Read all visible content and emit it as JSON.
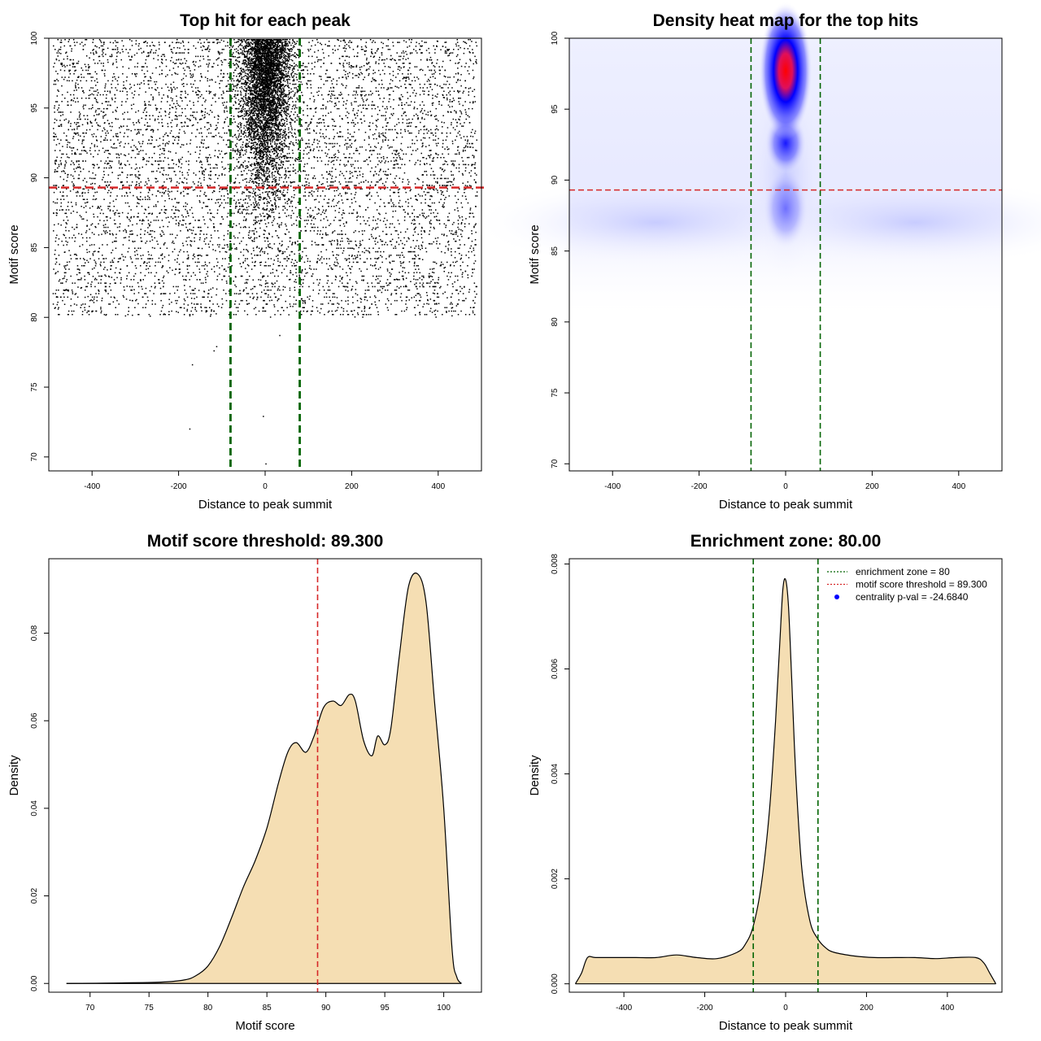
{
  "chart_data": [
    {
      "type": "scatter",
      "title": "Top hit for each peak",
      "xlabel": "Distance to peak summit",
      "ylabel": "Motif score",
      "xlim": [
        -500,
        500
      ],
      "ylim": [
        69,
        100
      ],
      "xticks": [
        -400,
        -200,
        0,
        200,
        400
      ],
      "yticks": [
        70,
        75,
        80,
        85,
        90,
        95,
        100
      ],
      "grid": false,
      "vlines": [
        -80,
        80
      ],
      "hline": 89.3,
      "points_summary": {
        "x_range": [
          -490,
          490
        ],
        "y_range": [
          69.5,
          99.9
        ],
        "concentration": "points densely clustered near x = 0 for scores 86–100; background uniformly spread for scores ~80–100 across the full x range",
        "outliers": [
          [
            -174,
            72
          ],
          [
            -168,
            76.6
          ],
          [
            -118,
            77.6
          ],
          [
            -112,
            77.9
          ],
          [
            -4,
            72.9
          ],
          [
            2,
            69.5
          ],
          [
            34,
            78.7
          ]
        ]
      },
      "colors": {
        "points": "#000000",
        "vlines": "#006400",
        "hline": "#d62728"
      }
    },
    {
      "type": "heatmap",
      "title": "Density heat map for the top hits",
      "xlabel": "Distance to peak summit",
      "ylabel": "Motif score",
      "xlim": [
        -500,
        500
      ],
      "ylim": [
        69.5,
        100
      ],
      "xticks": [
        -400,
        -200,
        0,
        200,
        400
      ],
      "yticks": [
        70,
        75,
        80,
        85,
        90,
        95,
        100
      ],
      "grid": false,
      "vlines": [
        -80,
        80
      ],
      "hline": 89.3,
      "hotspots": [
        {
          "x": 0,
          "y": 97.7,
          "intensity": 1.0
        },
        {
          "x": 0,
          "y": 92.6,
          "intensity": 0.65
        },
        {
          "x": 0,
          "y": 88,
          "intensity": 0.35
        }
      ],
      "colors": {
        "low": "#ffffff",
        "mid": "#0000ff",
        "high": "#ff0000",
        "vlines": "#006400",
        "hline": "#d62728"
      }
    },
    {
      "type": "area",
      "title": "Motif score threshold: 89.300",
      "xlabel": "Motif score",
      "ylabel": "Density",
      "xlim": [
        66.5,
        103.2
      ],
      "ylim": [
        -0.002,
        0.097
      ],
      "xticks": [
        70,
        75,
        80,
        85,
        90,
        95,
        100
      ],
      "yticks": [
        0.0,
        0.02,
        0.04,
        0.06,
        0.08
      ],
      "ytick_labels": [
        "0.00",
        "0.02",
        "0.04",
        "0.06",
        "0.08"
      ],
      "grid": false,
      "vline": 89.3,
      "x": [
        68,
        72,
        76,
        78,
        79,
        80,
        81,
        82,
        83,
        84,
        85,
        86,
        86.8,
        87.5,
        88.3,
        89,
        89.8,
        90.6,
        91.3,
        92,
        92.5,
        93.2,
        93.9,
        94.4,
        95,
        95.5,
        96.2,
        97,
        97.8,
        98.5,
        99.2,
        100,
        100.7,
        101.1,
        101.5
      ],
      "y": [
        0.0,
        0.0001,
        0.0003,
        0.0008,
        0.0018,
        0.004,
        0.0085,
        0.015,
        0.022,
        0.028,
        0.0355,
        0.046,
        0.053,
        0.055,
        0.0528,
        0.0565,
        0.063,
        0.0645,
        0.0635,
        0.066,
        0.0645,
        0.0555,
        0.052,
        0.0565,
        0.0545,
        0.058,
        0.074,
        0.0905,
        0.0935,
        0.087,
        0.065,
        0.04,
        0.008,
        0.0015,
        0.0
      ],
      "colors": {
        "fill": "#f5deb3",
        "line": "#000000",
        "vline": "#d62728"
      }
    },
    {
      "type": "area",
      "title": "Enrichment zone: 80.00",
      "xlabel": "Distance to peak summit",
      "ylabel": "Density",
      "xlim": [
        -535,
        535
      ],
      "ylim": [
        -0.00016,
        0.0081
      ],
      "xticks": [
        -400,
        -200,
        0,
        200,
        400
      ],
      "yticks": [
        0.0,
        0.002,
        0.004,
        0.006,
        0.008
      ],
      "ytick_labels": [
        "0.000",
        "0.002",
        "0.004",
        "0.006",
        "0.008"
      ],
      "grid": false,
      "vlines": [
        -80,
        80
      ],
      "x": [
        -520,
        -505,
        -490,
        -470,
        -420,
        -370,
        -320,
        -270,
        -220,
        -170,
        -120,
        -100,
        -80,
        -60,
        -40,
        -25,
        -15,
        -7,
        0,
        7,
        15,
        25,
        40,
        60,
        80,
        100,
        120,
        170,
        220,
        270,
        320,
        370,
        420,
        470,
        490,
        505,
        520
      ],
      "y": [
        0.0,
        0.0002,
        0.0005,
        0.0005,
        0.0005,
        0.0005,
        0.0005,
        0.00055,
        0.0005,
        0.00048,
        0.0006,
        0.00075,
        0.0011,
        0.0019,
        0.0033,
        0.005,
        0.0064,
        0.0075,
        0.0077,
        0.0072,
        0.0058,
        0.004,
        0.0022,
        0.0012,
        0.00085,
        0.00068,
        0.0006,
        0.00053,
        0.0005,
        0.0005,
        0.0005,
        0.00048,
        0.0005,
        0.0005,
        0.0004,
        0.0002,
        0.0
      ],
      "legend_placement": "top-right",
      "legend": [
        {
          "label": "enrichment zone = 80",
          "style": "dotted-line",
          "color": "#006400"
        },
        {
          "label": "motif score threshold = 89.300",
          "style": "dotted-line",
          "color": "#d62728"
        },
        {
          "label": "centrality p-val = -24.6840",
          "style": "point",
          "color": "#0000ff"
        }
      ],
      "colors": {
        "fill": "#f5deb3",
        "line": "#000000",
        "vlines": "#006400"
      }
    }
  ]
}
